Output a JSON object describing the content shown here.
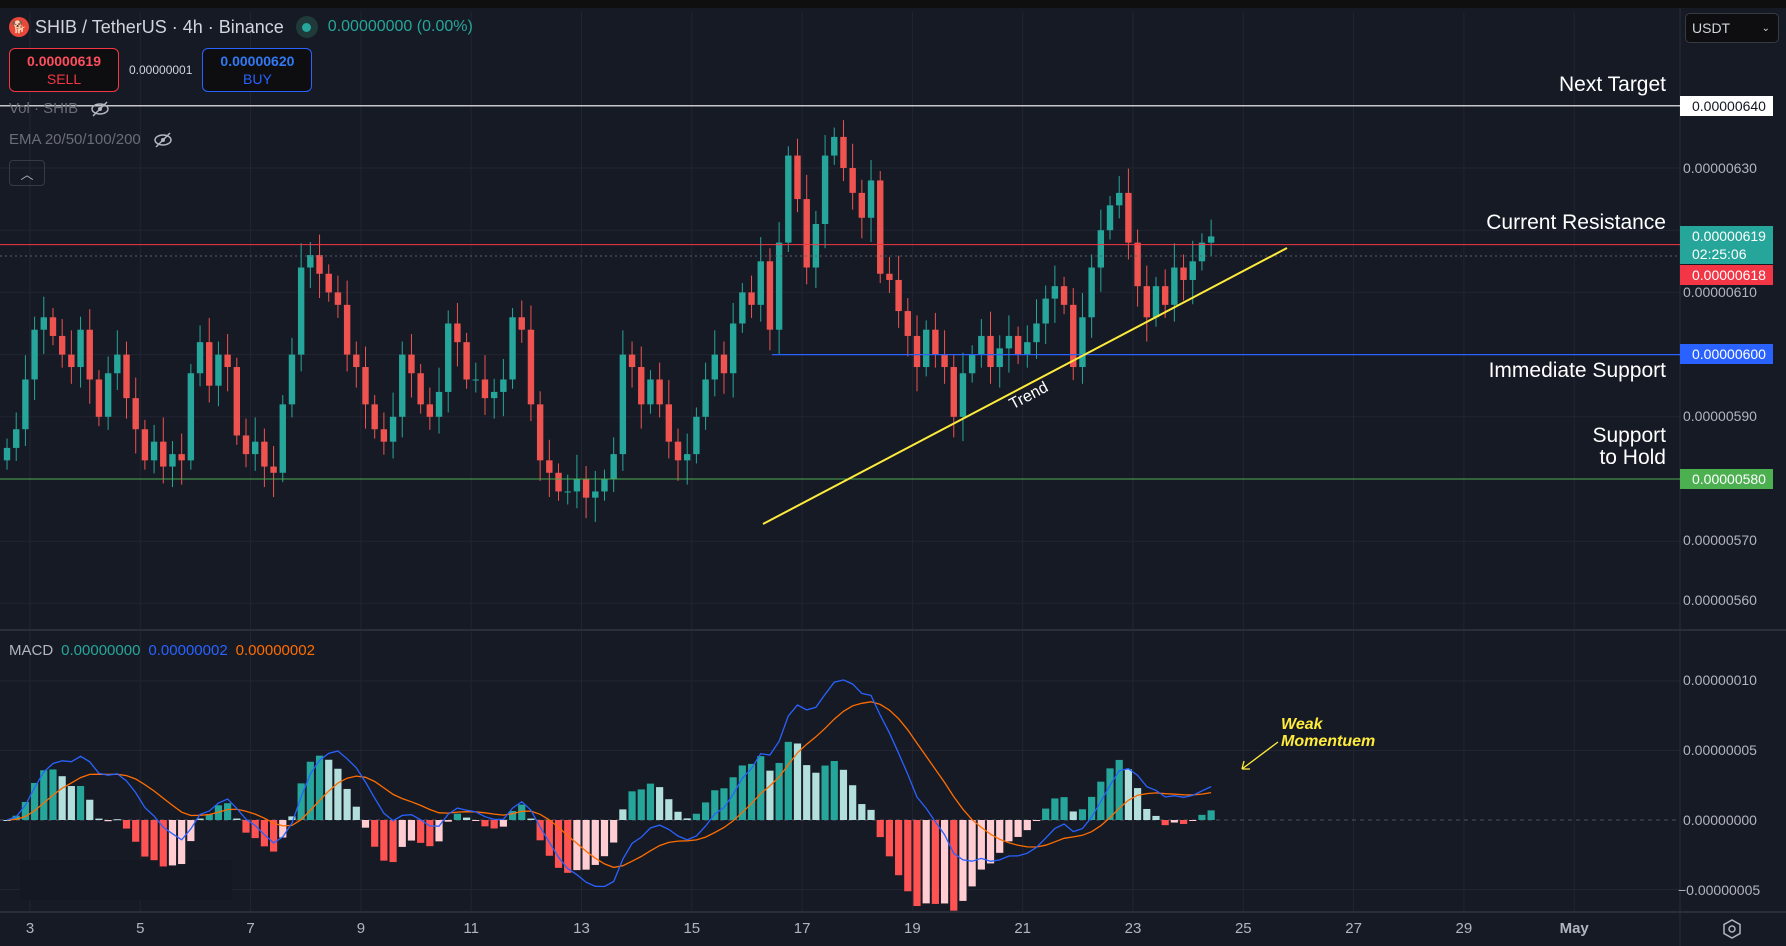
{
  "header": {
    "symbol_title": "SHIB / TetherUS · 4h · Binance",
    "change": "0.00000000 (0.00%)",
    "logo_icon": "shiba-inu-icon",
    "market_status_icon": "market-open-dot-icon"
  },
  "trade": {
    "sell_price": "0.00000619",
    "sell_label": "SELL",
    "spread": "0.00000001",
    "buy_price": "0.00000620",
    "buy_label": "BUY"
  },
  "legends": {
    "volume": "Vol · SHIB",
    "ema": "EMA 20/50/100/200",
    "hidden_icon": "eye-off-icon",
    "collapse_icon": "chevron-up-icon"
  },
  "currency_select": {
    "value": "USDT"
  },
  "price_axis": {
    "ticks": [
      "0.00000630",
      "0.00000610",
      "0.00000590",
      "0.00000570",
      "0.00000560"
    ],
    "next_target_tag": "0.00000640",
    "current_price_tag": "0.00000619",
    "countdown": "02:25:06",
    "resistance_tag": "0.00000618",
    "immediate_support_tag": "0.00000600",
    "support_hold_tag": "0.00000580"
  },
  "annotations": {
    "next_target": "Next Target",
    "current_resistance": "Current Resistance",
    "immediate_support": "Immediate Support",
    "support_hold_line1": "Support",
    "support_hold_line2": "to Hold",
    "trend": "Trend",
    "weak_line1": "Weak",
    "weak_line2": "Momentuem"
  },
  "macd": {
    "label": "MACD",
    "hist_value": "0.00000000",
    "macd_value": "0.00000002",
    "signal_value": "0.00000002",
    "ticks": [
      "0.00000010",
      "0.00000005",
      "0.00000000",
      "−0.00000005"
    ]
  },
  "time_axis": {
    "labels": [
      "3",
      "5",
      "7",
      "9",
      "11",
      "13",
      "15",
      "17",
      "19",
      "21",
      "23",
      "25",
      "27",
      "29",
      "May"
    ],
    "settings_icon": "gear-icon"
  },
  "colors": {
    "up": "#26a69a",
    "down": "#ef5350",
    "macd_line": "#2962ff",
    "signal_line": "#ff6d00",
    "next_target_line": "#ffffff",
    "resistance_line": "#f23645",
    "support_line": "#2962ff",
    "hold_line": "#4caf50",
    "trend_line": "#ffeb3b"
  },
  "chart_data": {
    "type": "candlestick",
    "interval": "4h",
    "price_unit": "1e-8 USDT",
    "first_day": 2.5,
    "closes": [
      585,
      588,
      596,
      604,
      606,
      603,
      600,
      598,
      604,
      596,
      590,
      597,
      600,
      593,
      588,
      583,
      586,
      582,
      584,
      583,
      597,
      602,
      595,
      600,
      598,
      587,
      584,
      586,
      582,
      581,
      592,
      600,
      614,
      616,
      613,
      610,
      608,
      600,
      598,
      592,
      588,
      586,
      590,
      600,
      597,
      592,
      590,
      594,
      605,
      602,
      596,
      596,
      593,
      594,
      596,
      606,
      604,
      592,
      583,
      581,
      578,
      578,
      580,
      577,
      578,
      580,
      584,
      600,
      598,
      592,
      596,
      592,
      586,
      583,
      584,
      590,
      596,
      600,
      597,
      605,
      610,
      608,
      615,
      604,
      618,
      632,
      625,
      614,
      621,
      632,
      635,
      630,
      626,
      622,
      628,
      613,
      612,
      607,
      603,
      598,
      604,
      600,
      598,
      590,
      597,
      600,
      603,
      598,
      601,
      603,
      600,
      602,
      605,
      609,
      611,
      608,
      598,
      606,
      614,
      620,
      624,
      626,
      618,
      611,
      606,
      611,
      608,
      614,
      612,
      615,
      618,
      619
    ],
    "levels": {
      "next_target": 640,
      "current_resistance": 618,
      "immediate_support": 600,
      "support_to_hold": 580
    },
    "ylim": [
      555,
      648
    ]
  }
}
